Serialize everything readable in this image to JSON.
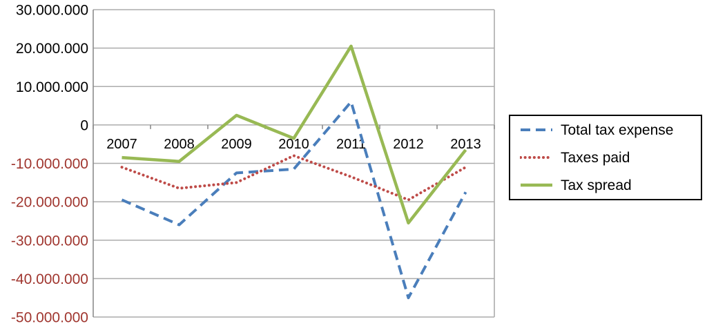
{
  "chart_data": {
    "type": "line",
    "title": "",
    "xlabel": "",
    "ylabel": "",
    "categories": [
      "2007",
      "2008",
      "2009",
      "2010",
      "2011",
      "2012",
      "2013"
    ],
    "series": [
      {
        "name": "Total tax expense",
        "style": "dashed",
        "color": "#4A7EBB",
        "values": [
          -19500000,
          -26000000,
          -12500000,
          -11500000,
          6000000,
          -45000000,
          -17500000
        ]
      },
      {
        "name": "Taxes paid",
        "style": "dotted",
        "color": "#BE4B48",
        "values": [
          -11000000,
          -16500000,
          -15000000,
          -8000000,
          -13500000,
          -19500000,
          -11000000
        ]
      },
      {
        "name": "Tax spread",
        "style": "solid",
        "color": "#98B954",
        "values": [
          -8500000,
          -9500000,
          2500000,
          -3500000,
          20500000,
          -25500000,
          -6500000
        ]
      }
    ],
    "ylim": [
      -50000000,
      30000000
    ],
    "ytick_step": 10000000,
    "ytick_labels": [
      "30.000.000",
      "20.000.000",
      "10.000.000",
      "0",
      "-10.000.000",
      "-20.000.000",
      "-30.000.000",
      "-40.000.000",
      "-50.000.000"
    ],
    "grid": true,
    "legend_position": "right",
    "colors": {
      "gridline": "#ACACAC",
      "axis": "#8C8C8C",
      "tick_label_positive": "#000000",
      "tick_label_negative": "#A0362F",
      "x_label": "#000000",
      "background": "#FFFFFF",
      "legend_border": "#000000"
    }
  }
}
